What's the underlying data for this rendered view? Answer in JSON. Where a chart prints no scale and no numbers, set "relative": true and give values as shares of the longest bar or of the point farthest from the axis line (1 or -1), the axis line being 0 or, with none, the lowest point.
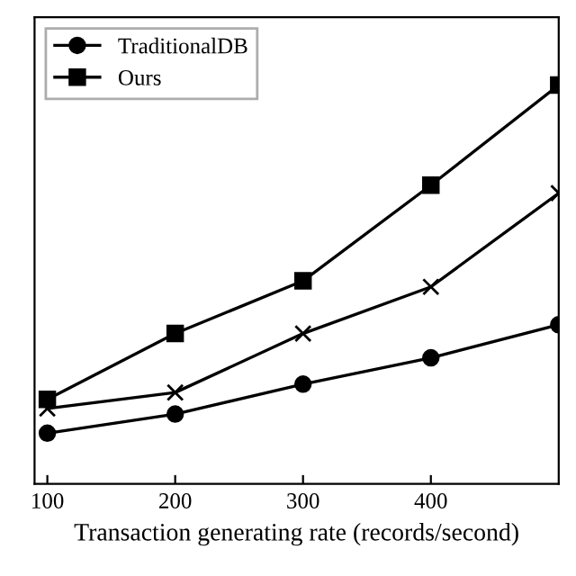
{
  "chart_data": {
    "type": "line",
    "relative": true,
    "xlabel": "Transaction generating rate (records/second)",
    "x": [
      100,
      200,
      300,
      400,
      500
    ],
    "xlim": [
      90,
      500
    ],
    "xticks": [
      100,
      200,
      300,
      400
    ],
    "legend": "top left",
    "grid": false,
    "line_style": "solid",
    "series": [
      {
        "name": "TraditionalDB",
        "color": "#000000",
        "marker": "circle",
        "values": [
          0.127,
          0.175,
          0.25,
          0.316,
          0.399
        ]
      },
      {
        "color": "#000000",
        "marker": "cross",
        "values": [
          0.189,
          0.229,
          0.377,
          0.494,
          0.729
        ]
      },
      {
        "name": "Ours",
        "color": "#000000",
        "marker": "square",
        "values": [
          0.212,
          0.377,
          0.509,
          0.749,
          1
        ]
      }
    ]
  }
}
